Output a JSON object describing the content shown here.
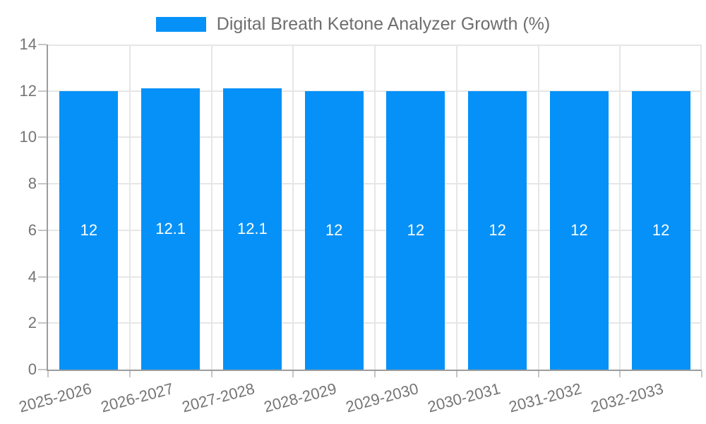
{
  "legend": {
    "label": "Digital Breath Ketone Analyzer Growth (%)"
  },
  "chart_data": {
    "type": "bar",
    "title": "Digital Breath Ketone Analyzer Growth (%)",
    "categories": [
      "2025-2026",
      "2026-2027",
      "2027-2028",
      "2028-2029",
      "2029-2030",
      "2030-2031",
      "2031-2032",
      "2032-2033"
    ],
    "values": [
      12,
      12.1,
      12.1,
      12,
      12,
      12,
      12,
      12
    ],
    "bar_labels": [
      "12",
      "12.1",
      "12.1",
      "12",
      "12",
      "12",
      "12",
      "12"
    ],
    "xlabel": "",
    "ylabel": "",
    "ylim": [
      0,
      14
    ],
    "yticks": [
      0,
      2,
      4,
      6,
      8,
      10,
      12,
      14
    ],
    "grid": true,
    "legend_position": "top-center"
  },
  "colors": {
    "bar_fill": "#0591f8",
    "value_label": "#ffffff",
    "axis_text": "#757575",
    "title_text": "#6e6e6e",
    "grid_line": "#e6e6e6",
    "axis_line": "#9c9c9c",
    "tick_mark": "#c6c6c6"
  }
}
